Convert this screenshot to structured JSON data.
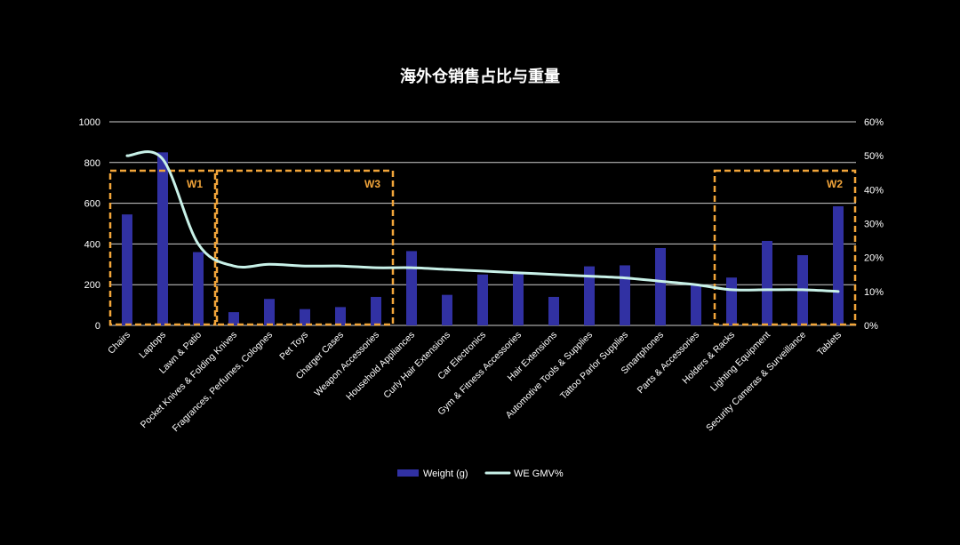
{
  "chart_data": {
    "type": "bar",
    "title": "海外仓销售占比与重量",
    "categories": [
      "Chairs",
      "Laptops",
      "Lawn & Patio",
      "Pocket Knives & Folding Knives",
      "Fragrances, Perfumes, Colognes",
      "Pet Toys",
      "Charger Cases",
      "Weapon Accessories",
      "Household Appliances",
      "Curly Hair Extensions",
      "Car Electronics",
      "Gym & Fitness Accessories",
      "Hair Extensions",
      "Automotive Tools & Supplies",
      "Tattoo Parlor Supplies",
      "Smartphones",
      "Parts & Accessories",
      "Holders & Racks",
      "Lighting Equipment",
      "Security Cameras & Surveillance",
      "Tablets"
    ],
    "series": [
      {
        "name": "Weight (g)",
        "type": "bar",
        "secondary_axis": false,
        "color": "#3131a3",
        "values": [
          545,
          850,
          360,
          65,
          130,
          80,
          90,
          140,
          365,
          150,
          250,
          255,
          140,
          290,
          295,
          380,
          200,
          235,
          415,
          345,
          585
        ]
      },
      {
        "name": "WE GMV%",
        "type": "line",
        "secondary_axis": true,
        "smooth": true,
        "color": "#c8f1e8",
        "values": [
          50,
          49,
          24,
          17.5,
          18,
          17.5,
          17.5,
          17,
          17,
          16.5,
          16,
          15.5,
          15,
          14.5,
          14,
          13,
          12,
          10.5,
          10.5,
          10.5,
          10
        ]
      }
    ],
    "ylim": [
      0,
      1000
    ],
    "yticks": [
      0,
      200,
      400,
      600,
      800,
      1000
    ],
    "y2lim": [
      0,
      60
    ],
    "y2ticks": [
      "0%",
      "10%",
      "20%",
      "30%",
      "40%",
      "50%",
      "60%"
    ],
    "grid": true,
    "legend": "bottom",
    "annotations": [
      {
        "label": "W1",
        "start": 0,
        "end": 2
      },
      {
        "label": "W3",
        "start": 3,
        "end": 7
      },
      {
        "label": "W2",
        "start": 17,
        "end": 20
      }
    ]
  },
  "colors": {
    "background": "#000000",
    "text": "#ffffff",
    "grid": "#cfcfcf",
    "annotation": "#f2a53a"
  }
}
